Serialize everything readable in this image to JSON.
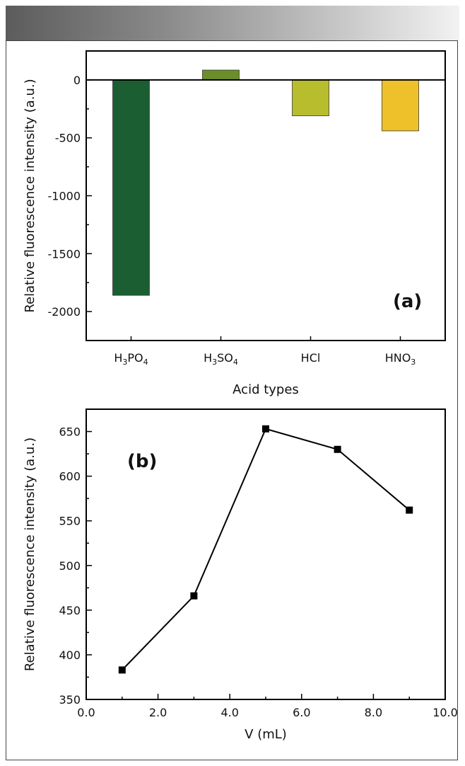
{
  "chart_data": [
    {
      "type": "bar",
      "panel_label": "(a)",
      "categories": [
        {
          "base": "H",
          "parts": [
            [
              "H",
              ""
            ],
            [
              "3",
              "sub"
            ],
            [
              "PO",
              ""
            ],
            [
              "4",
              "sub"
            ]
          ],
          "text": "H3PO4"
        },
        {
          "parts": [
            [
              "H",
              ""
            ],
            [
              "3",
              "sub"
            ],
            [
              "SO",
              ""
            ],
            [
              "4",
              "sub"
            ]
          ],
          "text": "H3SO4"
        },
        {
          "parts": [
            [
              "HCl",
              ""
            ]
          ],
          "text": "HCl"
        },
        {
          "parts": [
            [
              "HNO",
              ""
            ],
            [
              "3",
              "sub"
            ]
          ],
          "text": "HNO3"
        }
      ],
      "values": [
        -1860,
        85,
        -310,
        -440
      ],
      "colors": [
        "#1b5e32",
        "#6b8e2a",
        "#b8bd2e",
        "#eec12a"
      ],
      "xlabel": "Acid types",
      "ylabel": "Relative fluorescence intensity (a.u.)",
      "ylim": [
        -2250,
        250
      ],
      "yticks": [
        0,
        -500,
        -1000,
        -1500,
        -2000
      ],
      "ytick_labels": [
        "0",
        "-500",
        "-1000",
        "-1500",
        "-2000"
      ]
    },
    {
      "type": "line",
      "panel_label": "(b)",
      "x": [
        1.0,
        3.0,
        5.0,
        7.0,
        9.0
      ],
      "y": [
        383,
        466,
        653,
        630,
        562
      ],
      "xlabel": "V (mL)",
      "ylabel": "Relative fluorescence intensity (a.u.)",
      "xlim": [
        0.0,
        10.0
      ],
      "ylim": [
        350,
        675
      ],
      "xticks": [
        0.0,
        2.0,
        4.0,
        6.0,
        8.0,
        10.0
      ],
      "xtick_labels": [
        "0.0",
        "2.0",
        "4.0",
        "6.0",
        "8.0",
        "10.0"
      ],
      "yticks": [
        350,
        400,
        450,
        500,
        550,
        600,
        650
      ],
      "ytick_labels": [
        "350",
        "400",
        "450",
        "500",
        "550",
        "600",
        "650"
      ],
      "marker": "square",
      "color": "#000000"
    }
  ]
}
